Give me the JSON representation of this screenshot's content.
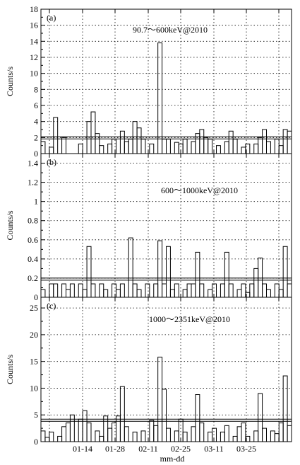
{
  "xlabel": "mm-dd",
  "x_tick_labels": [
    "01-14",
    "01-28",
    "02-11",
    "02-25",
    "03-11",
    "03-25"
  ],
  "chart_data": [
    {
      "type": "bar",
      "panel_label": "(a)",
      "annotation": "90.7～600keV@2010",
      "title": "",
      "ylabel": "Counts/s",
      "ylim": [
        0,
        18
      ],
      "yticks": [
        0,
        2,
        4,
        6,
        8,
        10,
        12,
        14,
        16,
        18
      ],
      "threshold": 2.1,
      "grid": true,
      "values": [
        1.5,
        0,
        0.8,
        4.5,
        0,
        2.0,
        0,
        0,
        0,
        1.2,
        0,
        4.0,
        5.2,
        2.5,
        1.0,
        0,
        1.2,
        1.8,
        0,
        2.8,
        1.5,
        1.8,
        4.0,
        3.2,
        1.8,
        0,
        1.2,
        0,
        13.8,
        1.8,
        1.8,
        0,
        1.4,
        1.2,
        1.8,
        0,
        1.5,
        2.5,
        3.0,
        2.0,
        1.8,
        0,
        1.0,
        0,
        1.5,
        2.8,
        1.8,
        0,
        0.8,
        1.2,
        0,
        1.2,
        2.0,
        3.0,
        1.5,
        0,
        1.8,
        1.0,
        3.0,
        2.8
      ]
    },
    {
      "type": "bar",
      "panel_label": "(b)",
      "annotation": "600～1000keV@2010",
      "title": "",
      "ylabel": "Counts/s",
      "ylim": [
        0,
        1.5
      ],
      "yticks": [
        0,
        0.2,
        0.4,
        0.6,
        0.8,
        1,
        1.2,
        1.4
      ],
      "threshold": 0.2,
      "grid": true,
      "values": [
        0.08,
        0,
        0.14,
        0.14,
        0,
        0.14,
        0.08,
        0.14,
        0,
        0.14,
        0.08,
        0.53,
        0.14,
        0,
        0.14,
        0.08,
        0,
        0.14,
        0.08,
        0.14,
        0,
        0.62,
        0.14,
        0.08,
        0,
        0.14,
        0,
        0.14,
        0.59,
        0.14,
        0.53,
        0.08,
        0.14,
        0,
        0.08,
        0.14,
        0.14,
        0.47,
        0.14,
        0,
        0.08,
        0.14,
        0,
        0.14,
        0.47,
        0.14,
        0,
        0.08,
        0.14,
        0.05,
        0.14,
        0.3,
        0.41,
        0.14,
        0.08,
        0,
        0.14,
        0.08,
        0.53,
        0.14
      ]
    },
    {
      "type": "bar",
      "panel_label": "(c)",
      "annotation": "1000～2351keV@2010",
      "title": "",
      "ylabel": "Counts/s",
      "ylim": [
        0,
        27
      ],
      "yticks": [
        0,
        5,
        10,
        15,
        20,
        25
      ],
      "threshold": 4.2,
      "grid": true,
      "values": [
        2.0,
        0.8,
        1.8,
        0,
        1.0,
        2.8,
        3.5,
        5.0,
        0,
        4.2,
        5.8,
        3.5,
        0,
        2.0,
        1.0,
        4.8,
        2.5,
        3.5,
        4.8,
        10.3,
        2.8,
        0,
        1.8,
        0,
        2.0,
        0,
        4.0,
        3.0,
        15.8,
        9.8,
        2.5,
        0,
        2.0,
        4.2,
        1.8,
        0,
        2.8,
        8.8,
        3.5,
        0,
        1.8,
        2.5,
        0,
        1.8,
        3.0,
        0,
        1.0,
        2.8,
        3.5,
        1.0,
        0,
        2.0,
        9.0,
        2.5,
        0,
        2.0,
        1.5,
        3.5,
        12.3,
        3.0
      ]
    }
  ]
}
